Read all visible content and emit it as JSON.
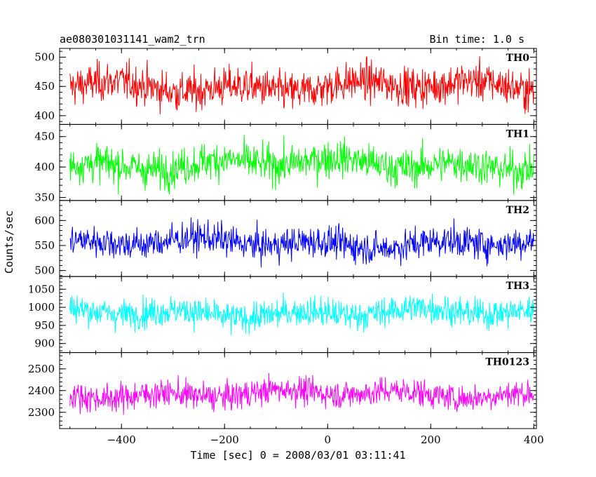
{
  "chart_data": {
    "type": "line",
    "title": "ae080301031141_wam2_trn",
    "subtitle": "Bin time: 1.0 s",
    "xlabel": "Time [sec] 0 = 2008/03/01 03:11:41",
    "ylabel": "Counts/sec",
    "xlim": [
      -520,
      405
    ],
    "x_ticks": [
      -400,
      -200,
      0,
      200,
      400
    ],
    "x_tick_labels": [
      "−400",
      "−200",
      "0",
      "200",
      "400"
    ],
    "x_data_range": [
      -500,
      400
    ],
    "bin_time": 1.0,
    "grid": false,
    "legend": "none",
    "series": [
      {
        "name": "TH0",
        "color": "#ff0000",
        "mean": 450,
        "spread": 26,
        "ylim": [
          385,
          515
        ],
        "yticks": [
          400,
          450,
          500
        ],
        "ytick_labels": [
          "400",
          "450",
          "500"
        ]
      },
      {
        "name": "TH1",
        "color": "#00ff00",
        "mean": 405,
        "spread": 24,
        "ylim": [
          345,
          470
        ],
        "yticks": [
          350,
          400,
          450
        ],
        "ytick_labels": [
          "350",
          "400",
          "450"
        ]
      },
      {
        "name": "TH2",
        "color": "#0000ff",
        "mean": 555,
        "spread": 25,
        "ylim": [
          488,
          640
        ],
        "yticks": [
          500,
          550,
          600
        ],
        "ytick_labels": [
          "500",
          "550",
          "600"
        ]
      },
      {
        "name": "TH3",
        "color": "#00ffff",
        "mean": 985,
        "spread": 32,
        "ylim": [
          875,
          1085
        ],
        "yticks": [
          900,
          950,
          1000,
          1050
        ],
        "ytick_labels": [
          "900",
          "950",
          "1000",
          "1050"
        ]
      },
      {
        "name": "TH0123",
        "color": "#ff00ff",
        "mean": 2385,
        "spread": 50,
        "ylim": [
          2225,
          2575
        ],
        "yticks": [
          2300,
          2400,
          2500
        ],
        "ytick_labels": [
          "2300",
          "2400",
          "2500"
        ]
      }
    ]
  }
}
